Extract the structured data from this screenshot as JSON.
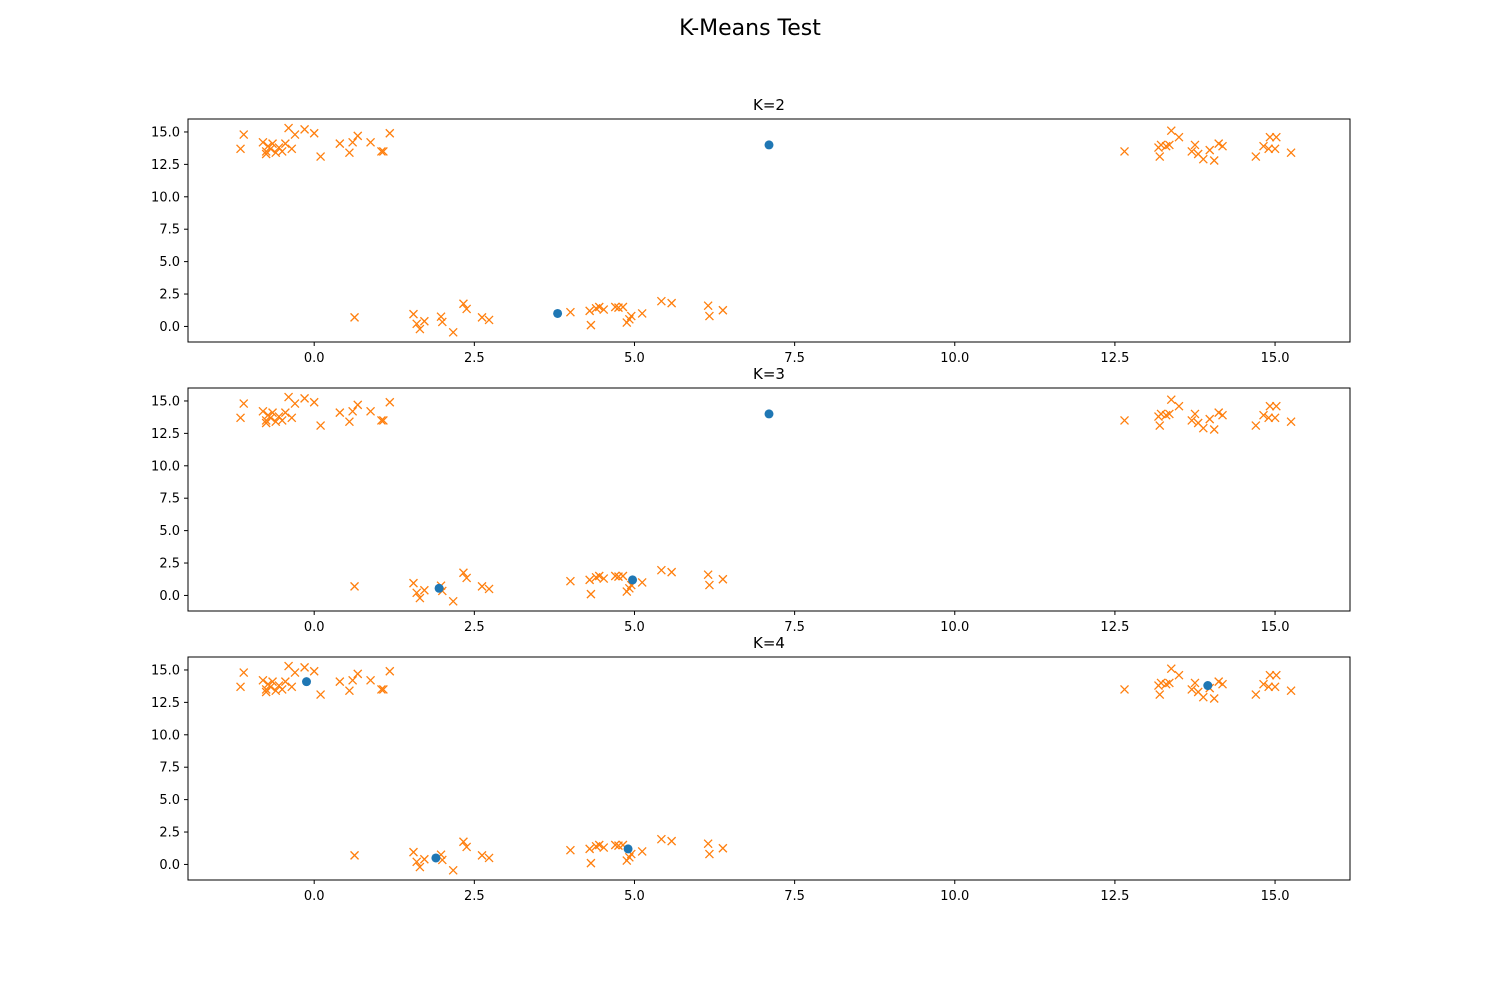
{
  "figure": {
    "title": "K-Means Test"
  },
  "colors": {
    "centroid": "#1f77b4",
    "points": "#ff7f0e",
    "axes": "#000000",
    "background": "#ffffff"
  },
  "chart_data": [
    {
      "type": "scatter",
      "title": "K=2",
      "xlim": [
        -1.97,
        16.17
      ],
      "ylim": [
        -1.2,
        16.0
      ],
      "xticks": [
        "0.0",
        "2.5",
        "5.0",
        "7.5",
        "10.0",
        "12.5",
        "15.0"
      ],
      "yticks": [
        "0.0",
        "2.5",
        "5.0",
        "7.5",
        "10.0",
        "12.5",
        "15.0"
      ],
      "grid": false,
      "series": [
        {
          "marker": "x",
          "points": [
            [
              -1.15,
              13.7
            ],
            [
              -1.1,
              14.8
            ],
            [
              -0.8,
              14.2
            ],
            [
              -0.75,
              13.5
            ],
            [
              -0.75,
              13.3
            ],
            [
              -0.72,
              13.9
            ],
            [
              -0.68,
              13.7
            ],
            [
              -0.65,
              14.1
            ],
            [
              -0.6,
              13.4
            ],
            [
              -0.55,
              13.8
            ],
            [
              -0.5,
              13.5
            ],
            [
              -0.45,
              14.1
            ],
            [
              -0.4,
              15.3
            ],
            [
              -0.35,
              13.7
            ],
            [
              -0.3,
              14.8
            ],
            [
              -0.15,
              15.2
            ],
            [
              0.0,
              14.9
            ],
            [
              0.1,
              13.1
            ],
            [
              0.4,
              14.1
            ],
            [
              0.55,
              13.4
            ],
            [
              0.6,
              14.2
            ],
            [
              0.68,
              14.7
            ],
            [
              0.88,
              14.2
            ],
            [
              1.05,
              13.5
            ],
            [
              1.08,
              13.5
            ],
            [
              1.18,
              14.9
            ],
            [
              0.63,
              0.7
            ],
            [
              1.55,
              0.95
            ],
            [
              1.6,
              0.2
            ],
            [
              1.65,
              -0.2
            ],
            [
              1.72,
              0.4
            ],
            [
              1.98,
              0.75
            ],
            [
              2.0,
              0.35
            ],
            [
              2.17,
              -0.45
            ],
            [
              2.33,
              1.75
            ],
            [
              2.38,
              1.35
            ],
            [
              2.62,
              0.7
            ],
            [
              2.73,
              0.5
            ],
            [
              4.0,
              1.1
            ],
            [
              4.3,
              1.2
            ],
            [
              4.32,
              0.1
            ],
            [
              4.4,
              1.4
            ],
            [
              4.45,
              1.5
            ],
            [
              4.52,
              1.3
            ],
            [
              4.7,
              1.5
            ],
            [
              4.75,
              1.45
            ],
            [
              4.82,
              1.5
            ],
            [
              4.88,
              0.3
            ],
            [
              4.92,
              0.55
            ],
            [
              4.95,
              0.8
            ],
            [
              5.12,
              1.0
            ],
            [
              5.42,
              1.95
            ],
            [
              5.58,
              1.8
            ],
            [
              6.15,
              1.6
            ],
            [
              6.17,
              0.8
            ],
            [
              6.38,
              1.25
            ],
            [
              12.65,
              13.5
            ],
            [
              13.18,
              13.8
            ],
            [
              13.2,
              13.1
            ],
            [
              13.22,
              14.0
            ],
            [
              13.3,
              13.9
            ],
            [
              13.35,
              14.0
            ],
            [
              13.38,
              15.1
            ],
            [
              13.5,
              14.6
            ],
            [
              13.7,
              13.5
            ],
            [
              13.75,
              14.0
            ],
            [
              13.8,
              13.3
            ],
            [
              13.88,
              12.9
            ],
            [
              13.98,
              13.6
            ],
            [
              14.05,
              12.8
            ],
            [
              14.12,
              14.1
            ],
            [
              14.18,
              13.9
            ],
            [
              14.7,
              13.1
            ],
            [
              14.82,
              13.9
            ],
            [
              14.9,
              13.7
            ],
            [
              14.92,
              14.6
            ],
            [
              15.0,
              13.7
            ],
            [
              15.02,
              14.6
            ],
            [
              15.25,
              13.4
            ]
          ]
        },
        {
          "marker": "o",
          "points": [
            [
              3.8,
              1.0
            ],
            [
              7.1,
              14.0
            ]
          ]
        }
      ]
    },
    {
      "type": "scatter",
      "title": "K=3",
      "xlim": [
        -1.97,
        16.17
      ],
      "ylim": [
        -1.2,
        16.0
      ],
      "xticks": [
        "0.0",
        "2.5",
        "5.0",
        "7.5",
        "10.0",
        "12.5",
        "15.0"
      ],
      "yticks": [
        "0.0",
        "2.5",
        "5.0",
        "7.5",
        "10.0",
        "12.5",
        "15.0"
      ],
      "grid": false,
      "series": [
        {
          "marker": "x",
          "points": [
            [
              -1.15,
              13.7
            ],
            [
              -1.1,
              14.8
            ],
            [
              -0.8,
              14.2
            ],
            [
              -0.75,
              13.5
            ],
            [
              -0.75,
              13.3
            ],
            [
              -0.72,
              13.9
            ],
            [
              -0.68,
              13.7
            ],
            [
              -0.65,
              14.1
            ],
            [
              -0.6,
              13.4
            ],
            [
              -0.55,
              13.8
            ],
            [
              -0.5,
              13.5
            ],
            [
              -0.45,
              14.1
            ],
            [
              -0.4,
              15.3
            ],
            [
              -0.35,
              13.7
            ],
            [
              -0.3,
              14.8
            ],
            [
              -0.15,
              15.2
            ],
            [
              0.0,
              14.9
            ],
            [
              0.1,
              13.1
            ],
            [
              0.4,
              14.1
            ],
            [
              0.55,
              13.4
            ],
            [
              0.6,
              14.2
            ],
            [
              0.68,
              14.7
            ],
            [
              0.88,
              14.2
            ],
            [
              1.05,
              13.5
            ],
            [
              1.08,
              13.5
            ],
            [
              1.18,
              14.9
            ],
            [
              0.63,
              0.7
            ],
            [
              1.55,
              0.95
            ],
            [
              1.6,
              0.2
            ],
            [
              1.65,
              -0.2
            ],
            [
              1.72,
              0.4
            ],
            [
              1.98,
              0.75
            ],
            [
              2.0,
              0.35
            ],
            [
              2.17,
              -0.45
            ],
            [
              2.33,
              1.75
            ],
            [
              2.38,
              1.35
            ],
            [
              2.62,
              0.7
            ],
            [
              2.73,
              0.5
            ],
            [
              4.0,
              1.1
            ],
            [
              4.3,
              1.2
            ],
            [
              4.32,
              0.1
            ],
            [
              4.4,
              1.4
            ],
            [
              4.45,
              1.5
            ],
            [
              4.52,
              1.3
            ],
            [
              4.7,
              1.5
            ],
            [
              4.75,
              1.45
            ],
            [
              4.82,
              1.5
            ],
            [
              4.88,
              0.3
            ],
            [
              4.92,
              0.55
            ],
            [
              4.95,
              0.8
            ],
            [
              5.12,
              1.0
            ],
            [
              5.42,
              1.95
            ],
            [
              5.58,
              1.8
            ],
            [
              6.15,
              1.6
            ],
            [
              6.17,
              0.8
            ],
            [
              6.38,
              1.25
            ],
            [
              12.65,
              13.5
            ],
            [
              13.18,
              13.8
            ],
            [
              13.2,
              13.1
            ],
            [
              13.22,
              14.0
            ],
            [
              13.3,
              13.9
            ],
            [
              13.35,
              14.0
            ],
            [
              13.38,
              15.1
            ],
            [
              13.5,
              14.6
            ],
            [
              13.7,
              13.5
            ],
            [
              13.75,
              14.0
            ],
            [
              13.8,
              13.3
            ],
            [
              13.88,
              12.9
            ],
            [
              13.98,
              13.6
            ],
            [
              14.05,
              12.8
            ],
            [
              14.12,
              14.1
            ],
            [
              14.18,
              13.9
            ],
            [
              14.7,
              13.1
            ],
            [
              14.82,
              13.9
            ],
            [
              14.9,
              13.7
            ],
            [
              14.92,
              14.6
            ],
            [
              15.0,
              13.7
            ],
            [
              15.02,
              14.6
            ],
            [
              15.25,
              13.4
            ]
          ]
        },
        {
          "marker": "o",
          "points": [
            [
              1.95,
              0.55
            ],
            [
              4.97,
              1.2
            ],
            [
              7.1,
              14.0
            ]
          ]
        }
      ]
    },
    {
      "type": "scatter",
      "title": "K=4",
      "xlim": [
        -1.97,
        16.17
      ],
      "ylim": [
        -1.2,
        16.0
      ],
      "xticks": [
        "0.0",
        "2.5",
        "5.0",
        "7.5",
        "10.0",
        "12.5",
        "15.0"
      ],
      "yticks": [
        "0.0",
        "2.5",
        "5.0",
        "7.5",
        "10.0",
        "12.5",
        "15.0"
      ],
      "grid": false,
      "series": [
        {
          "marker": "x",
          "points": [
            [
              -1.15,
              13.7
            ],
            [
              -1.1,
              14.8
            ],
            [
              -0.8,
              14.2
            ],
            [
              -0.75,
              13.5
            ],
            [
              -0.75,
              13.3
            ],
            [
              -0.72,
              13.9
            ],
            [
              -0.68,
              13.7
            ],
            [
              -0.65,
              14.1
            ],
            [
              -0.6,
              13.4
            ],
            [
              -0.55,
              13.8
            ],
            [
              -0.5,
              13.5
            ],
            [
              -0.45,
              14.1
            ],
            [
              -0.4,
              15.3
            ],
            [
              -0.35,
              13.7
            ],
            [
              -0.3,
              14.8
            ],
            [
              -0.15,
              15.2
            ],
            [
              0.0,
              14.9
            ],
            [
              0.1,
              13.1
            ],
            [
              0.4,
              14.1
            ],
            [
              0.55,
              13.4
            ],
            [
              0.6,
              14.2
            ],
            [
              0.68,
              14.7
            ],
            [
              0.88,
              14.2
            ],
            [
              1.05,
              13.5
            ],
            [
              1.08,
              13.5
            ],
            [
              1.18,
              14.9
            ],
            [
              0.63,
              0.7
            ],
            [
              1.55,
              0.95
            ],
            [
              1.6,
              0.2
            ],
            [
              1.65,
              -0.2
            ],
            [
              1.72,
              0.4
            ],
            [
              1.98,
              0.75
            ],
            [
              2.0,
              0.35
            ],
            [
              2.17,
              -0.45
            ],
            [
              2.33,
              1.75
            ],
            [
              2.38,
              1.35
            ],
            [
              2.62,
              0.7
            ],
            [
              2.73,
              0.5
            ],
            [
              4.0,
              1.1
            ],
            [
              4.3,
              1.2
            ],
            [
              4.32,
              0.1
            ],
            [
              4.4,
              1.4
            ],
            [
              4.45,
              1.5
            ],
            [
              4.52,
              1.3
            ],
            [
              4.7,
              1.5
            ],
            [
              4.75,
              1.45
            ],
            [
              4.82,
              1.5
            ],
            [
              4.88,
              0.3
            ],
            [
              4.92,
              0.55
            ],
            [
              4.95,
              0.8
            ],
            [
              5.12,
              1.0
            ],
            [
              5.42,
              1.95
            ],
            [
              5.58,
              1.8
            ],
            [
              6.15,
              1.6
            ],
            [
              6.17,
              0.8
            ],
            [
              6.38,
              1.25
            ],
            [
              12.65,
              13.5
            ],
            [
              13.18,
              13.8
            ],
            [
              13.2,
              13.1
            ],
            [
              13.22,
              14.0
            ],
            [
              13.3,
              13.9
            ],
            [
              13.35,
              14.0
            ],
            [
              13.38,
              15.1
            ],
            [
              13.5,
              14.6
            ],
            [
              13.7,
              13.5
            ],
            [
              13.75,
              14.0
            ],
            [
              13.8,
              13.3
            ],
            [
              13.88,
              12.9
            ],
            [
              13.98,
              13.6
            ],
            [
              14.05,
              12.8
            ],
            [
              14.12,
              14.1
            ],
            [
              14.18,
              13.9
            ],
            [
              14.7,
              13.1
            ],
            [
              14.82,
              13.9
            ],
            [
              14.9,
              13.7
            ],
            [
              14.92,
              14.6
            ],
            [
              15.0,
              13.7
            ],
            [
              15.02,
              14.6
            ],
            [
              15.25,
              13.4
            ]
          ]
        },
        {
          "marker": "o",
          "points": [
            [
              -0.12,
              14.1
            ],
            [
              1.9,
              0.5
            ],
            [
              4.9,
              1.2
            ],
            [
              13.95,
              13.8
            ]
          ]
        }
      ]
    }
  ]
}
